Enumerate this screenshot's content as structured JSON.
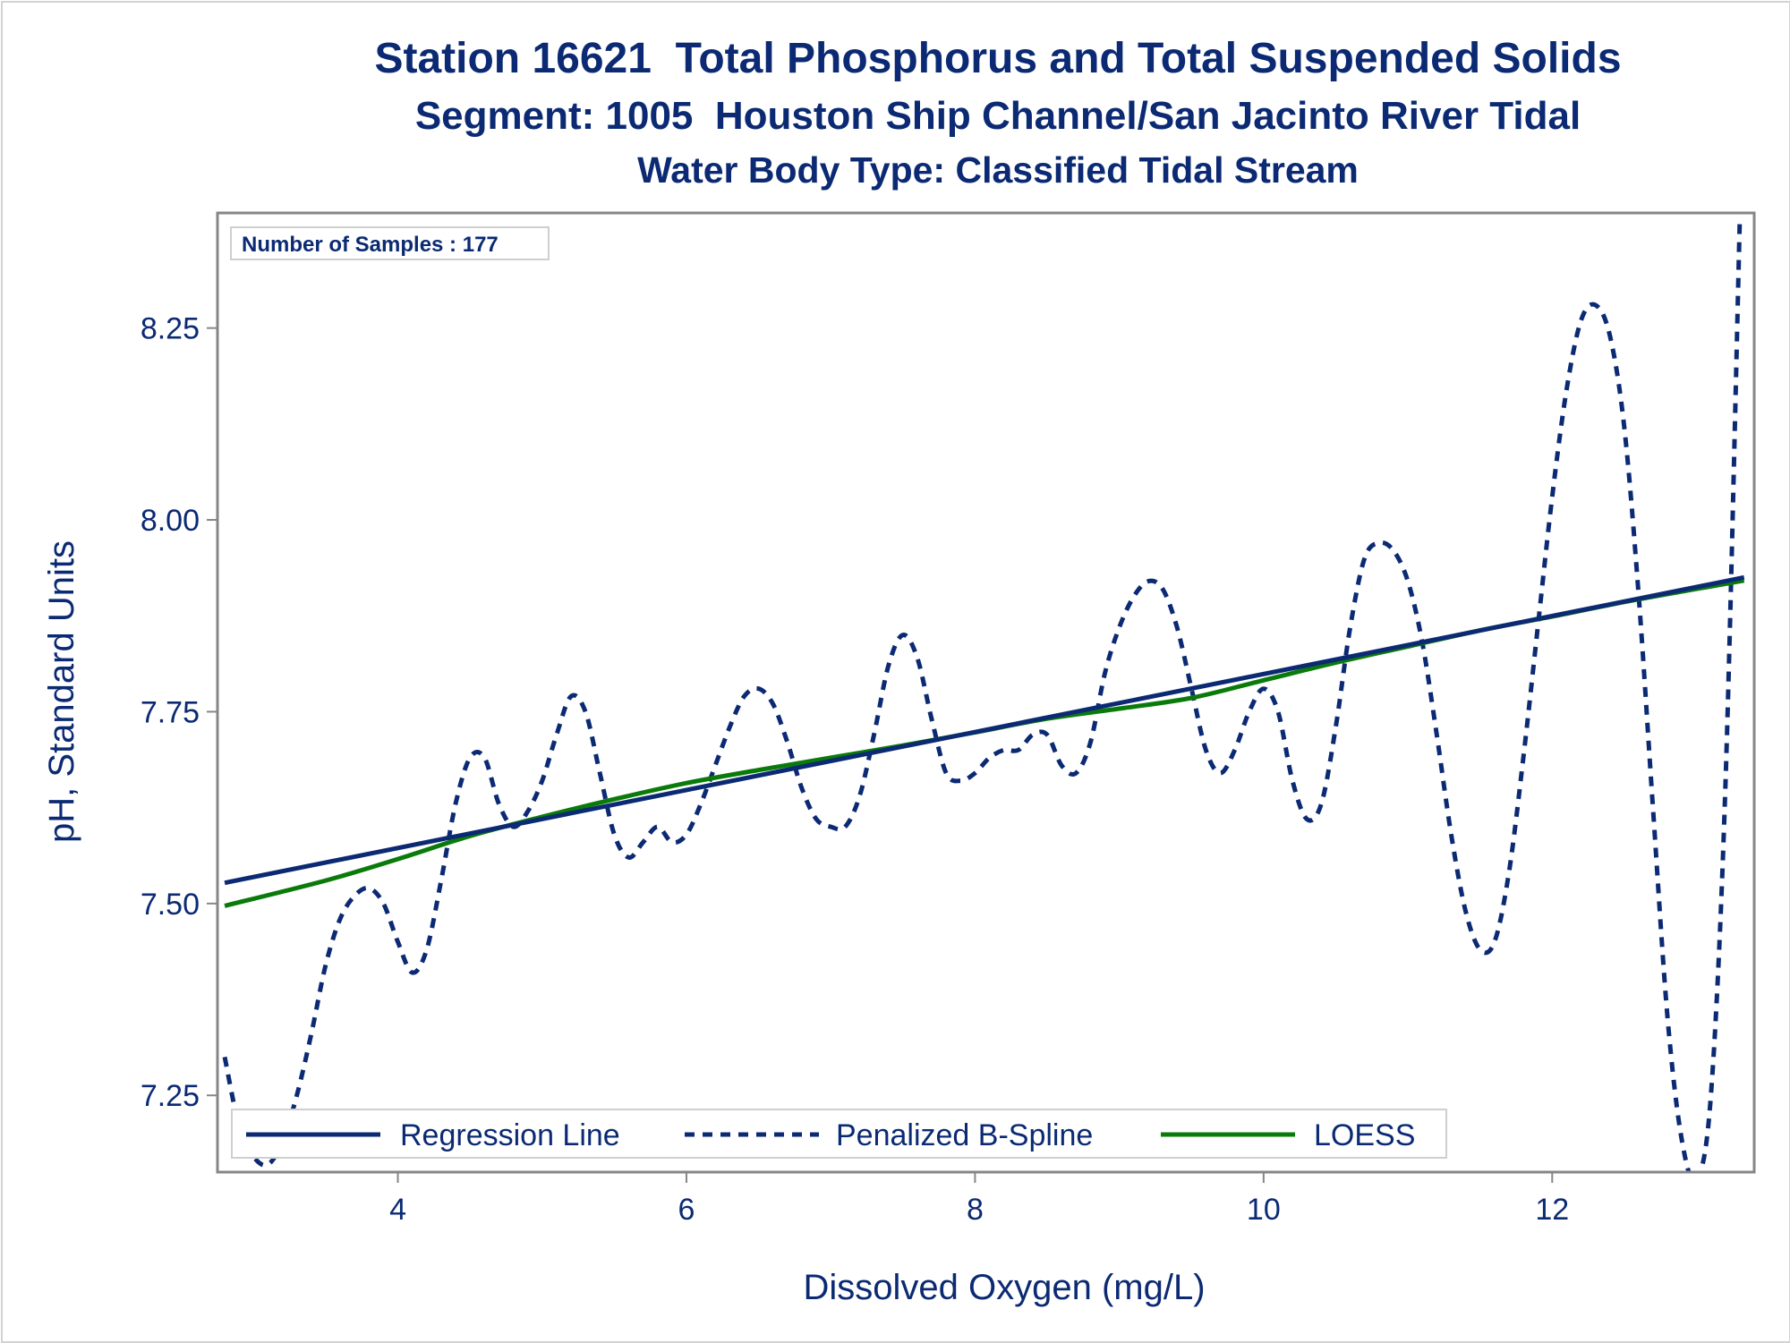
{
  "chart_data": {
    "type": "line",
    "title": "Station 16621  Total Phosphorus and Total Suspended Solids",
    "subtitle": "Segment: 1005  Houston Ship Channel/San Jacinto River Tidal",
    "subtitle2": "Water Body Type: Classified Tidal Stream",
    "xlabel": "Dissolved Oxygen (mg/L)",
    "ylabel": "pH, Standard Units",
    "xlim": [
      2.75,
      13.4
    ],
    "ylim": [
      7.15,
      8.4
    ],
    "xticks": [
      4,
      6,
      8,
      10,
      12
    ],
    "xtick_labels": [
      "4",
      "6",
      "8",
      "10",
      "12"
    ],
    "yticks": [
      7.25,
      7.5,
      7.75,
      8.0,
      8.25
    ],
    "ytick_labels": [
      "7.25",
      "7.50",
      "7.75",
      "8.00",
      "8.25"
    ],
    "grid": false,
    "legend_position": "bottom-inside",
    "inset_text": "Number of Samples : 177",
    "series": [
      {
        "name": "Regression Line",
        "style": "solid",
        "color": "#0b2a73",
        "x": [
          2.8,
          13.33
        ],
        "y": [
          7.527,
          7.925
        ]
      },
      {
        "name": "Penalized B-Spline",
        "style": "dashed",
        "color": "#0b2a73",
        "x": [
          2.8,
          2.9,
          3.0,
          3.1,
          3.2,
          3.3,
          3.4,
          3.5,
          3.6,
          3.7,
          3.8,
          3.9,
          4.0,
          4.1,
          4.2,
          4.3,
          4.4,
          4.5,
          4.6,
          4.7,
          4.8,
          4.9,
          5.0,
          5.1,
          5.2,
          5.3,
          5.4,
          5.5,
          5.6,
          5.7,
          5.8,
          5.9,
          6.0,
          6.1,
          6.2,
          6.3,
          6.4,
          6.5,
          6.6,
          6.7,
          6.8,
          6.9,
          7.0,
          7.1,
          7.2,
          7.3,
          7.4,
          7.5,
          7.6,
          7.7,
          7.8,
          7.9,
          8.0,
          8.1,
          8.2,
          8.3,
          8.4,
          8.5,
          8.6,
          8.7,
          8.8,
          8.9,
          9.0,
          9.1,
          9.2,
          9.3,
          9.4,
          9.5,
          9.6,
          9.7,
          9.8,
          9.9,
          10.0,
          10.1,
          10.2,
          10.3,
          10.4,
          10.5,
          10.6,
          10.7,
          10.8,
          10.9,
          11.0,
          11.1,
          11.2,
          11.3,
          11.4,
          11.5,
          11.6,
          11.7,
          11.8,
          11.9,
          12.0,
          12.1,
          12.2,
          12.3,
          12.4,
          12.5,
          12.6,
          12.7,
          12.8,
          12.9,
          13.0,
          13.1,
          13.2,
          13.3
        ],
        "y": [
          7.3,
          7.21,
          7.17,
          7.16,
          7.19,
          7.25,
          7.33,
          7.42,
          7.48,
          7.51,
          7.52,
          7.5,
          7.45,
          7.41,
          7.44,
          7.53,
          7.63,
          7.69,
          7.69,
          7.63,
          7.6,
          7.62,
          7.66,
          7.72,
          7.77,
          7.75,
          7.67,
          7.59,
          7.56,
          7.58,
          7.6,
          7.58,
          7.59,
          7.63,
          7.68,
          7.73,
          7.77,
          7.78,
          7.76,
          7.71,
          7.65,
          7.61,
          7.6,
          7.6,
          7.64,
          7.72,
          7.81,
          7.85,
          7.82,
          7.74,
          7.67,
          7.66,
          7.67,
          7.69,
          7.7,
          7.7,
          7.72,
          7.72,
          7.68,
          7.67,
          7.71,
          7.8,
          7.86,
          7.9,
          7.92,
          7.91,
          7.86,
          7.78,
          7.7,
          7.67,
          7.7,
          7.75,
          7.78,
          7.75,
          7.66,
          7.61,
          7.63,
          7.73,
          7.86,
          7.95,
          7.97,
          7.96,
          7.92,
          7.84,
          7.72,
          7.59,
          7.49,
          7.44,
          7.45,
          7.54,
          7.69,
          7.86,
          8.03,
          8.17,
          8.26,
          8.28,
          8.24,
          8.12,
          7.9,
          7.62,
          7.35,
          7.19,
          7.14,
          7.25,
          7.65,
          8.39
        ]
      },
      {
        "name": "LOESS",
        "style": "solid",
        "color": "#0a7b0a",
        "x": [
          2.8,
          3.5,
          4.0,
          4.5,
          5.0,
          5.5,
          6.0,
          6.5,
          7.0,
          7.5,
          8.0,
          8.5,
          9.0,
          9.5,
          10.0,
          10.5,
          11.0,
          11.5,
          12.0,
          12.5,
          13.0,
          13.33
        ],
        "y": [
          7.497,
          7.53,
          7.558,
          7.588,
          7.613,
          7.636,
          7.657,
          7.674,
          7.69,
          7.706,
          7.723,
          7.741,
          7.754,
          7.768,
          7.791,
          7.814,
          7.835,
          7.856,
          7.874,
          7.893,
          7.91,
          7.921
        ]
      }
    ]
  }
}
